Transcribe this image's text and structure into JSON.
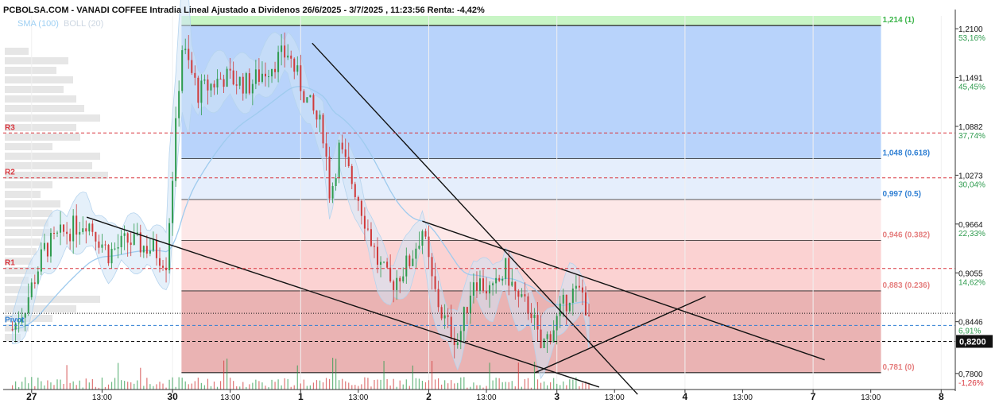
{
  "title": "PCBOLSA.COM - VANADI COFFEE Intradia Lineal Ajustado a Dividenos 26/6/2025 - 3/7/2025 , 11:23:56 Renta: -4,42%",
  "legend": [
    {
      "label": "SMA (100)",
      "color": "#9fd0f3"
    },
    {
      "label": "BOLL (20)",
      "color": "#cdd7e2"
    }
  ],
  "colors": {
    "candle_up": "#2e9b4e",
    "candle_down": "#d03a3a",
    "pivot_red": "#d9363e",
    "pivot_blue": "#2f7fd3",
    "fib_green_fill": "#c8f5c5",
    "fib_blue_fill": "#b8d3fb",
    "fib_pink_fill": "#f9c8c8"
  },
  "chart_data": {
    "type": "candlestick",
    "y_axis": {
      "range": [
        0.76,
        1.226
      ],
      "ticks": [
        {
          "value": 1.21,
          "label": "1,2100",
          "pct": "53,16%"
        },
        {
          "value": 1.1491,
          "label": "1,1491",
          "pct": "45,45%"
        },
        {
          "value": 1.0882,
          "label": "1,0882",
          "pct": "37,74%"
        },
        {
          "value": 1.0273,
          "label": "1,0273",
          "pct": "30,04%"
        },
        {
          "value": 0.9664,
          "label": "0,9664",
          "pct": "22,33%"
        },
        {
          "value": 0.9055,
          "label": "0,9055",
          "pct": "14,62%"
        },
        {
          "value": 0.8446,
          "label": "0,8446",
          "pct": "6,91%"
        },
        {
          "value": 0.78,
          "label": "0,7800",
          "pct": "-1,26%"
        }
      ]
    },
    "x_axis": {
      "ticks": [
        {
          "label": "27",
          "slot": 1.5,
          "bold": true
        },
        {
          "label": "13:00",
          "slot": 7,
          "bold": false
        },
        {
          "label": "30",
          "slot": 12.5,
          "bold": true
        },
        {
          "label": "13:00",
          "slot": 17,
          "bold": false
        },
        {
          "label": "1",
          "slot": 22.5,
          "bold": true
        },
        {
          "label": "13:00",
          "slot": 27,
          "bold": false
        },
        {
          "label": "2",
          "slot": 32.5,
          "bold": true
        },
        {
          "label": "13:00",
          "slot": 37,
          "bold": false
        },
        {
          "label": "3",
          "slot": 42.5,
          "bold": true
        },
        {
          "label": "13:00",
          "slot": 47,
          "bold": false
        },
        {
          "label": "4",
          "slot": 52.5,
          "bold": true
        },
        {
          "label": "13:00",
          "slot": 57,
          "bold": false
        },
        {
          "label": "7",
          "slot": 62.5,
          "bold": true
        },
        {
          "label": "13:00",
          "slot": 67,
          "bold": false
        },
        {
          "label": "8",
          "slot": 72.5,
          "bold": true
        }
      ]
    },
    "current_price": {
      "value": 0.82,
      "label": "0,8200"
    },
    "pivot_levels": [
      {
        "label": "R3",
        "value": 1.08,
        "color": "red"
      },
      {
        "label": "R2",
        "value": 1.024,
        "color": "red"
      },
      {
        "label": "R1",
        "value": 0.911,
        "color": "red"
      },
      {
        "label": "Pivot",
        "value": 0.84,
        "color": "blue"
      }
    ],
    "reference_lines": [
      {
        "value": 0.855,
        "style": "dotted"
      },
      {
        "value": 0.82,
        "style": "dashed"
      }
    ],
    "fibonacci": [
      {
        "value": 1.214,
        "label": "1,214 (1)",
        "color": "#3cb54a"
      },
      {
        "value": 1.048,
        "label": "1,048 (0.618)",
        "color": "#2f7fd3"
      },
      {
        "value": 0.997,
        "label": "0,997 (0.5)",
        "color": "#2f7fd3"
      },
      {
        "value": 0.946,
        "label": "0,946 (0.382)",
        "color": "#e57f7f"
      },
      {
        "value": 0.883,
        "label": "0,883 (0.236)",
        "color": "#e57f7f"
      },
      {
        "value": 0.781,
        "label": "0,781 (0)",
        "color": "#e57f7f"
      }
    ],
    "trendlines": [
      {
        "from": [
          23.4,
          1.192
        ],
        "to": [
          48.8,
          0.754
        ]
      },
      {
        "from": [
          5.8,
          0.975
        ],
        "to": [
          45.8,
          0.763
        ]
      },
      {
        "from": [
          32,
          0.97
        ],
        "to": [
          63.4,
          0.797
        ]
      },
      {
        "from": [
          40.8,
          0.781
        ],
        "to": [
          54.1,
          0.876
        ]
      }
    ],
    "price_path": [
      {
        "slot": 0.0,
        "value": 0.835
      },
      {
        "slot": 1.0,
        "value": 0.865
      },
      {
        "slot": 2.5,
        "value": 0.935
      },
      {
        "slot": 4.0,
        "value": 0.955
      },
      {
        "slot": 5.8,
        "value": 0.972
      },
      {
        "slot": 7.5,
        "value": 0.93
      },
      {
        "slot": 9.0,
        "value": 0.945
      },
      {
        "slot": 11.0,
        "value": 0.935
      },
      {
        "slot": 12.0,
        "value": 0.92
      },
      {
        "slot": 12.6,
        "value": 1.05
      },
      {
        "slot": 13.2,
        "value": 1.19
      },
      {
        "slot": 14.5,
        "value": 1.13
      },
      {
        "slot": 16.5,
        "value": 1.15
      },
      {
        "slot": 18.5,
        "value": 1.14
      },
      {
        "slot": 20.5,
        "value": 1.17
      },
      {
        "slot": 21.5,
        "value": 1.18
      },
      {
        "slot": 23.0,
        "value": 1.12
      },
      {
        "slot": 24.3,
        "value": 1.08
      },
      {
        "slot": 24.8,
        "value": 1.0
      },
      {
        "slot": 25.5,
        "value": 1.06
      },
      {
        "slot": 27.0,
        "value": 1.0
      },
      {
        "slot": 28.5,
        "value": 0.92
      },
      {
        "slot": 29.5,
        "value": 0.89
      },
      {
        "slot": 31.0,
        "value": 0.92
      },
      {
        "slot": 32.0,
        "value": 0.96
      },
      {
        "slot": 32.8,
        "value": 0.89
      },
      {
        "slot": 33.6,
        "value": 0.85
      },
      {
        "slot": 34.8,
        "value": 0.82
      },
      {
        "slot": 36.0,
        "value": 0.9
      },
      {
        "slot": 37.5,
        "value": 0.88
      },
      {
        "slot": 38.5,
        "value": 0.91
      },
      {
        "slot": 39.5,
        "value": 0.87
      },
      {
        "slot": 40.5,
        "value": 0.86
      },
      {
        "slot": 41.2,
        "value": 0.81
      },
      {
        "slot": 42.3,
        "value": 0.84
      },
      {
        "slot": 43.5,
        "value": 0.88
      },
      {
        "slot": 44.6,
        "value": 0.88
      },
      {
        "slot": 45.2,
        "value": 0.82
      }
    ]
  }
}
